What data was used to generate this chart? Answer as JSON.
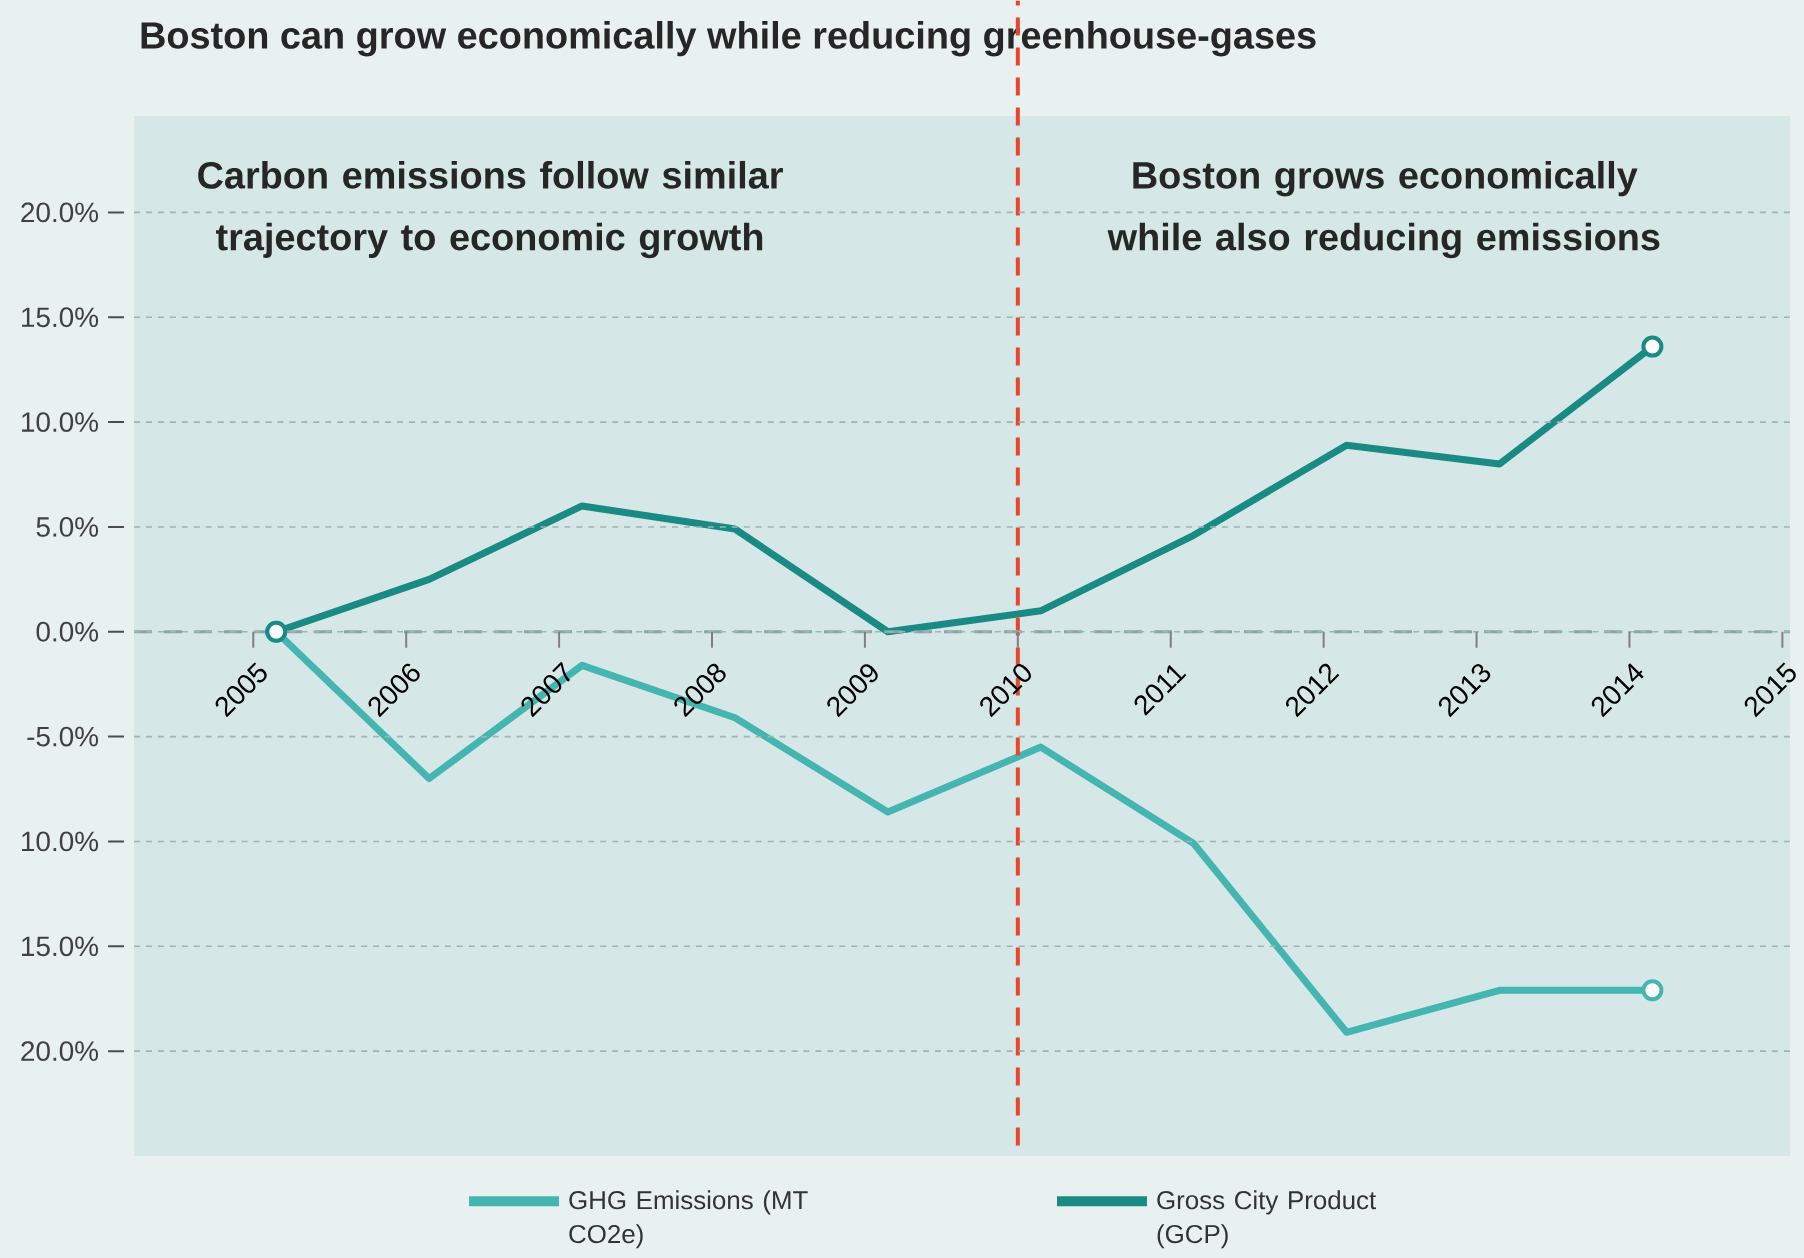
{
  "chart_data": {
    "type": "line",
    "title": "Boston can grow economically while reducing greenhouse-gases",
    "annotations": [
      "Carbon emissions follow similar trajectory to economic growth",
      "Boston grows economically while also reducing emissions"
    ],
    "xlim": [
      2004.22,
      2015.05
    ],
    "ylim": [
      -25,
      24.6
    ],
    "xticks": [
      2005,
      2006,
      2007,
      2008,
      2009,
      2010,
      2011,
      2012,
      2013,
      2014,
      2015
    ],
    "yticks": [
      {
        "value": 20,
        "label": "20.0%"
      },
      {
        "value": 15,
        "label": "15.0%"
      },
      {
        "value": 10,
        "label": "10.0%"
      },
      {
        "value": 5,
        "label": "5.0%"
      },
      {
        "value": 0,
        "label": "0.0%"
      },
      {
        "value": -5,
        "label": "-5.0%"
      },
      {
        "value": -10,
        "label": "10.0%"
      },
      {
        "value": -15,
        "label": "15.0%"
      },
      {
        "value": -20,
        "label": "20.0%"
      }
    ],
    "grid": "y",
    "legend": "bottom",
    "line_style": "solid",
    "ref_lines": [
      {
        "axis": "x",
        "value": 2010,
        "color": "#e8452c",
        "line_style": "dashed"
      },
      {
        "axis": "y",
        "value": 0,
        "color": "#89a6a4",
        "line_style": "dashed"
      }
    ],
    "series": [
      {
        "name": "GHG Emissions (MT CO2e)",
        "color": "#45b5b1",
        "x": [
          2005.15,
          2006.15,
          2007.15,
          2008.15,
          2009.15,
          2010.15,
          2011.15,
          2012.15,
          2013.15,
          2014.15
        ],
        "values": [
          0,
          -7.0,
          -1.6,
          -4.1,
          -8.6,
          -5.5,
          -10.1,
          -19.1,
          -17.1,
          -17.1
        ]
      },
      {
        "name": "Gross City Product (GCP)",
        "color": "#1a8a85",
        "x": [
          2005.15,
          2006.15,
          2007.15,
          2008.15,
          2009.15,
          2010.15,
          2011.15,
          2012.15,
          2013.15,
          2014.15
        ],
        "values": [
          0,
          2.5,
          6.0,
          4.9,
          0,
          1.0,
          4.6,
          8.9,
          8.0,
          13.6
        ]
      }
    ]
  }
}
